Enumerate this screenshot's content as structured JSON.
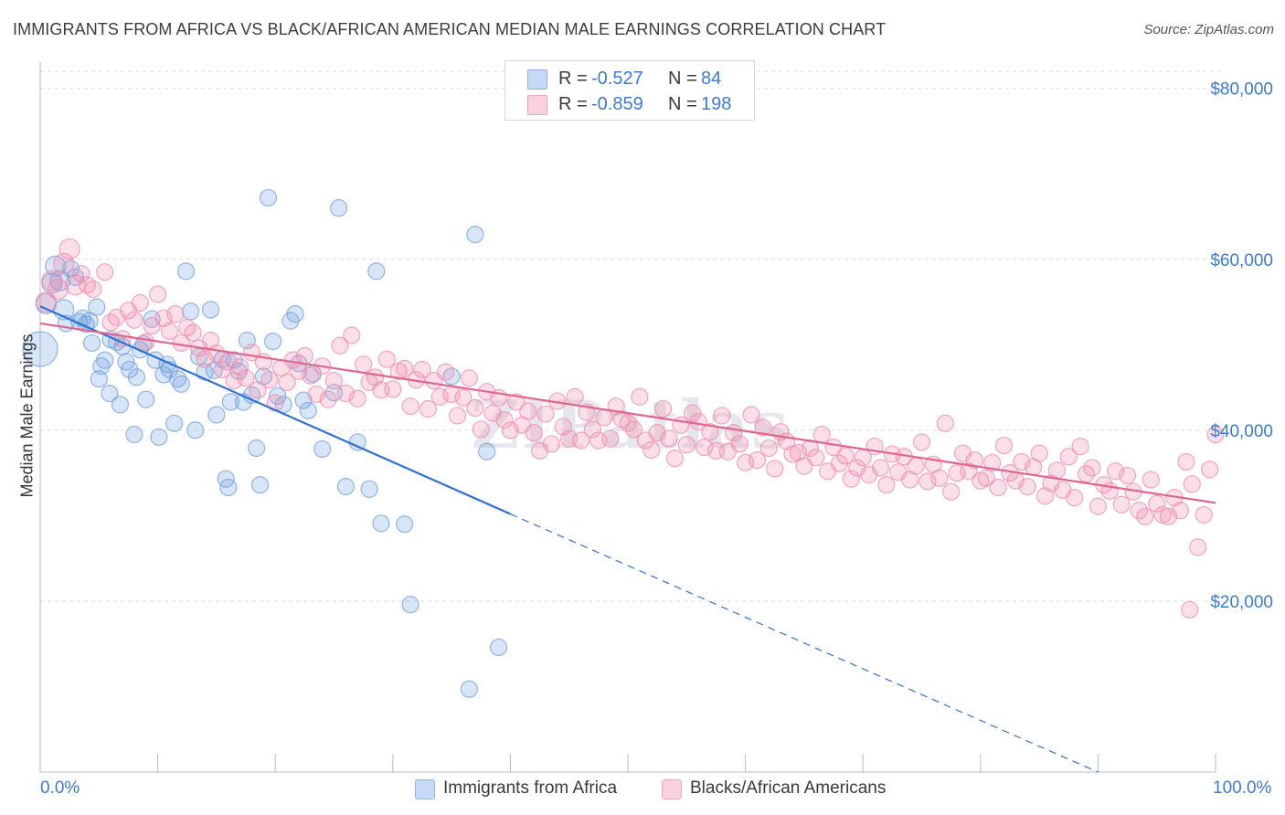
{
  "title": "IMMIGRANTS FROM AFRICA VS BLACK/AFRICAN AMERICAN MEDIAN MALE EARNINGS CORRELATION CHART",
  "source": "Source: ZipAtlas.com",
  "watermark": "ZIPatlas",
  "legend": {
    "rows": [
      {
        "r_label": "R =",
        "r_value": "-0.527",
        "n_label": "N =",
        "n_value": "84",
        "color": "#a9c8f0"
      },
      {
        "r_label": "R =",
        "r_value": "-0.859",
        "n_label": "N =",
        "n_value": "198",
        "color": "#f5b6c9"
      }
    ]
  },
  "bottom_legend": {
    "items": [
      {
        "label": "Immigrants from Africa",
        "color": "#a9c8f0"
      },
      {
        "label": "Blacks/African Americans",
        "color": "#f5b6c9"
      }
    ]
  },
  "chart_data": {
    "type": "scatter",
    "title": "IMMIGRANTS FROM AFRICA VS BLACK/AFRICAN AMERICAN MEDIAN MALE EARNINGS CORRELATION CHART",
    "xlabel": "",
    "ylabel": "Median Male Earnings",
    "x_tick_labels": [
      "0.0%",
      "100.0%"
    ],
    "y_tick_labels": [
      "$20,000",
      "$40,000",
      "$60,000",
      "$80,000"
    ],
    "y_ticks": [
      20000,
      40000,
      60000,
      80000
    ],
    "xlim": [
      0,
      100
    ],
    "ylim": [
      0,
      82000
    ],
    "grid": true,
    "legend_position": "top-center",
    "series": [
      {
        "name": "Immigrants from Africa",
        "color": "#6fa0e0",
        "line_color": "#2f72d4",
        "r": -0.527,
        "n": 84,
        "trend": {
          "x0": 0,
          "y0": 54500,
          "x1": 40,
          "y1": 30200,
          "dashed_to_x": 90,
          "dashed_to_y": 0
        },
        "points": [
          [
            0,
            49500
          ],
          [
            0.5,
            54800
          ],
          [
            1,
            57200
          ],
          [
            1.3,
            59200
          ],
          [
            1.7,
            57500
          ],
          [
            2,
            54100
          ],
          [
            2.2,
            52500
          ],
          [
            2.6,
            58900
          ],
          [
            3,
            57900
          ],
          [
            3.3,
            52700
          ],
          [
            3.6,
            53100
          ],
          [
            3.9,
            52400
          ],
          [
            4.2,
            52800
          ],
          [
            4.4,
            50200
          ],
          [
            4.8,
            54400
          ],
          [
            5,
            46000
          ],
          [
            5.2,
            47500
          ],
          [
            5.5,
            48200
          ],
          [
            5.9,
            44300
          ],
          [
            6,
            50600
          ],
          [
            6.5,
            50300
          ],
          [
            6.8,
            43000
          ],
          [
            7,
            49800
          ],
          [
            7.3,
            48000
          ],
          [
            7.6,
            47100
          ],
          [
            8,
            39500
          ],
          [
            8.2,
            46200
          ],
          [
            8.5,
            49400
          ],
          [
            8.8,
            50100
          ],
          [
            9,
            43600
          ],
          [
            9.5,
            53000
          ],
          [
            9.8,
            48200
          ],
          [
            10.1,
            39200
          ],
          [
            10.5,
            46500
          ],
          [
            10.8,
            47700
          ],
          [
            11,
            47100
          ],
          [
            11.4,
            40800
          ],
          [
            11.7,
            46000
          ],
          [
            12,
            45400
          ],
          [
            12.4,
            58600
          ],
          [
            12.8,
            53900
          ],
          [
            13.2,
            40000
          ],
          [
            13.5,
            48600
          ],
          [
            14,
            46800
          ],
          [
            14.5,
            54100
          ],
          [
            14.8,
            47000
          ],
          [
            15,
            41800
          ],
          [
            15.5,
            48300
          ],
          [
            15.8,
            34300
          ],
          [
            16,
            33300
          ],
          [
            16.2,
            43300
          ],
          [
            16.5,
            48200
          ],
          [
            16.9,
            46900
          ],
          [
            17.3,
            43300
          ],
          [
            17.6,
            50500
          ],
          [
            18,
            44100
          ],
          [
            18.4,
            37900
          ],
          [
            18.7,
            33600
          ],
          [
            19,
            46300
          ],
          [
            19.4,
            67200
          ],
          [
            19.8,
            50400
          ],
          [
            20.2,
            44000
          ],
          [
            20.7,
            43000
          ],
          [
            21.3,
            52800
          ],
          [
            21.7,
            53600
          ],
          [
            22,
            47800
          ],
          [
            22.4,
            43500
          ],
          [
            22.8,
            42300
          ],
          [
            23.2,
            46600
          ],
          [
            24,
            37800
          ],
          [
            25,
            44400
          ],
          [
            25.4,
            66000
          ],
          [
            26,
            33400
          ],
          [
            27,
            38600
          ],
          [
            28,
            33100
          ],
          [
            28.6,
            58600
          ],
          [
            29,
            29100
          ],
          [
            31,
            29000
          ],
          [
            31.5,
            19600
          ],
          [
            35,
            46300
          ],
          [
            37,
            62900
          ],
          [
            38,
            37500
          ],
          [
            39,
            14600
          ],
          [
            36.5,
            9700
          ]
        ]
      },
      {
        "name": "Blacks/African Americans",
        "color": "#f08bab",
        "line_color": "#e0668e",
        "r": -0.859,
        "n": 198,
        "trend": {
          "x0": 0,
          "y0": 52500,
          "x1": 100,
          "y1": 31500
        },
        "points": [
          [
            0.5,
            55000
          ],
          [
            1,
            57500
          ],
          [
            1.5,
            56500
          ],
          [
            2,
            59500
          ],
          [
            2.5,
            61200
          ],
          [
            3,
            57000
          ],
          [
            3.5,
            58300
          ],
          [
            4,
            57000
          ],
          [
            4.5,
            56500
          ],
          [
            5.5,
            58500
          ],
          [
            6,
            52600
          ],
          [
            6.5,
            53200
          ],
          [
            7,
            50700
          ],
          [
            7.5,
            54000
          ],
          [
            8,
            52900
          ],
          [
            8.5,
            54900
          ],
          [
            9,
            50300
          ],
          [
            9.5,
            52200
          ],
          [
            10,
            55900
          ],
          [
            10.5,
            53100
          ],
          [
            11,
            51600
          ],
          [
            11.5,
            53600
          ],
          [
            12,
            50200
          ],
          [
            12.5,
            52000
          ],
          [
            13,
            51400
          ],
          [
            13.5,
            49600
          ],
          [
            14,
            48300
          ],
          [
            14.5,
            50500
          ],
          [
            15,
            49000
          ],
          [
            15.5,
            47100
          ],
          [
            16,
            48000
          ],
          [
            16.5,
            45800
          ],
          [
            17,
            47400
          ],
          [
            17.5,
            46100
          ],
          [
            18,
            49100
          ],
          [
            18.5,
            44700
          ],
          [
            19,
            48000
          ],
          [
            19.5,
            45900
          ],
          [
            20,
            43200
          ],
          [
            20.5,
            47300
          ],
          [
            21,
            45600
          ],
          [
            21.5,
            48200
          ],
          [
            22,
            46900
          ],
          [
            22.5,
            48700
          ],
          [
            23,
            46400
          ],
          [
            23.5,
            44200
          ],
          [
            24,
            47500
          ],
          [
            24.5,
            43600
          ],
          [
            25,
            45800
          ],
          [
            25.5,
            49900
          ],
          [
            26,
            44300
          ],
          [
            26.5,
            51100
          ],
          [
            27,
            43700
          ],
          [
            27.5,
            47700
          ],
          [
            28,
            45600
          ],
          [
            28.5,
            46200
          ],
          [
            29,
            44700
          ],
          [
            29.5,
            48300
          ],
          [
            30,
            44800
          ],
          [
            30.5,
            46900
          ],
          [
            31,
            47200
          ],
          [
            31.5,
            42800
          ],
          [
            32,
            45900
          ],
          [
            32.5,
            47100
          ],
          [
            33,
            42500
          ],
          [
            33.5,
            45800
          ],
          [
            34,
            43900
          ],
          [
            34.5,
            46800
          ],
          [
            35,
            44200
          ],
          [
            35.5,
            41700
          ],
          [
            36,
            43800
          ],
          [
            36.5,
            46100
          ],
          [
            37,
            42600
          ],
          [
            37.5,
            40100
          ],
          [
            38,
            44500
          ],
          [
            38.5,
            42000
          ],
          [
            39,
            43800
          ],
          [
            39.5,
            41200
          ],
          [
            40,
            40000
          ],
          [
            40.5,
            43300
          ],
          [
            41,
            40600
          ],
          [
            41.5,
            42200
          ],
          [
            42,
            39700
          ],
          [
            42.5,
            37600
          ],
          [
            43,
            41900
          ],
          [
            43.5,
            38400
          ],
          [
            44,
            43400
          ],
          [
            44.5,
            40400
          ],
          [
            45,
            39000
          ],
          [
            45.5,
            43900
          ],
          [
            46,
            38800
          ],
          [
            46.5,
            42100
          ],
          [
            47,
            40100
          ],
          [
            47.5,
            38800
          ],
          [
            48,
            41500
          ],
          [
            48.5,
            39000
          ],
          [
            49,
            42800
          ],
          [
            49.5,
            41300
          ],
          [
            50,
            40800
          ],
          [
            50.5,
            40100
          ],
          [
            51,
            43900
          ],
          [
            51.5,
            38800
          ],
          [
            52,
            37700
          ],
          [
            52.5,
            39700
          ],
          [
            53,
            42500
          ],
          [
            53.5,
            39000
          ],
          [
            54,
            36700
          ],
          [
            54.5,
            40600
          ],
          [
            55,
            38300
          ],
          [
            55.5,
            42000
          ],
          [
            56,
            41000
          ],
          [
            56.5,
            38000
          ],
          [
            57,
            39800
          ],
          [
            57.5,
            37600
          ],
          [
            58,
            41700
          ],
          [
            58.5,
            37500
          ],
          [
            59,
            39700
          ],
          [
            59.5,
            38400
          ],
          [
            60,
            36200
          ],
          [
            60.5,
            41800
          ],
          [
            61,
            36500
          ],
          [
            61.5,
            40300
          ],
          [
            62,
            37900
          ],
          [
            62.5,
            35500
          ],
          [
            63,
            39800
          ],
          [
            63.5,
            38700
          ],
          [
            64,
            37200
          ],
          [
            64.5,
            37400
          ],
          [
            65,
            35800
          ],
          [
            65.5,
            37900
          ],
          [
            66,
            36800
          ],
          [
            66.5,
            39500
          ],
          [
            67,
            35200
          ],
          [
            67.5,
            38000
          ],
          [
            68,
            36100
          ],
          [
            68.5,
            37000
          ],
          [
            69,
            34300
          ],
          [
            69.5,
            35600
          ],
          [
            70,
            36800
          ],
          [
            70.5,
            34800
          ],
          [
            71,
            38100
          ],
          [
            71.5,
            35600
          ],
          [
            72,
            33600
          ],
          [
            72.5,
            37200
          ],
          [
            73,
            35100
          ],
          [
            73.5,
            36900
          ],
          [
            74,
            34200
          ],
          [
            74.5,
            35800
          ],
          [
            75,
            38600
          ],
          [
            75.5,
            34000
          ],
          [
            76,
            36000
          ],
          [
            76.5,
            34400
          ],
          [
            77,
            40800
          ],
          [
            77.5,
            32800
          ],
          [
            78,
            35000
          ],
          [
            78.5,
            37300
          ],
          [
            79,
            35200
          ],
          [
            79.5,
            36500
          ],
          [
            80,
            34100
          ],
          [
            80.5,
            34400
          ],
          [
            81,
            36200
          ],
          [
            81.5,
            33300
          ],
          [
            82,
            38200
          ],
          [
            82.5,
            35000
          ],
          [
            83,
            34100
          ],
          [
            83.5,
            36300
          ],
          [
            84,
            33400
          ],
          [
            84.5,
            35700
          ],
          [
            85,
            37300
          ],
          [
            85.5,
            32300
          ],
          [
            86,
            33800
          ],
          [
            86.5,
            35300
          ],
          [
            87,
            33000
          ],
          [
            87.5,
            36900
          ],
          [
            88,
            32100
          ],
          [
            88.5,
            38100
          ],
          [
            89,
            34900
          ],
          [
            89.5,
            35600
          ],
          [
            90,
            31100
          ],
          [
            90.5,
            33600
          ],
          [
            91,
            32900
          ],
          [
            91.5,
            35200
          ],
          [
            92,
            31300
          ],
          [
            92.5,
            34700
          ],
          [
            93,
            32800
          ],
          [
            93.5,
            30600
          ],
          [
            94,
            29900
          ],
          [
            94.5,
            34200
          ],
          [
            95,
            31400
          ],
          [
            95.5,
            30100
          ],
          [
            96,
            29900
          ],
          [
            96.5,
            32100
          ],
          [
            97,
            30600
          ],
          [
            97.5,
            36300
          ],
          [
            98,
            33700
          ],
          [
            98.5,
            26300
          ],
          [
            99,
            30100
          ],
          [
            99.5,
            35400
          ],
          [
            100,
            39500
          ],
          [
            97.8,
            19000
          ]
        ]
      }
    ]
  }
}
